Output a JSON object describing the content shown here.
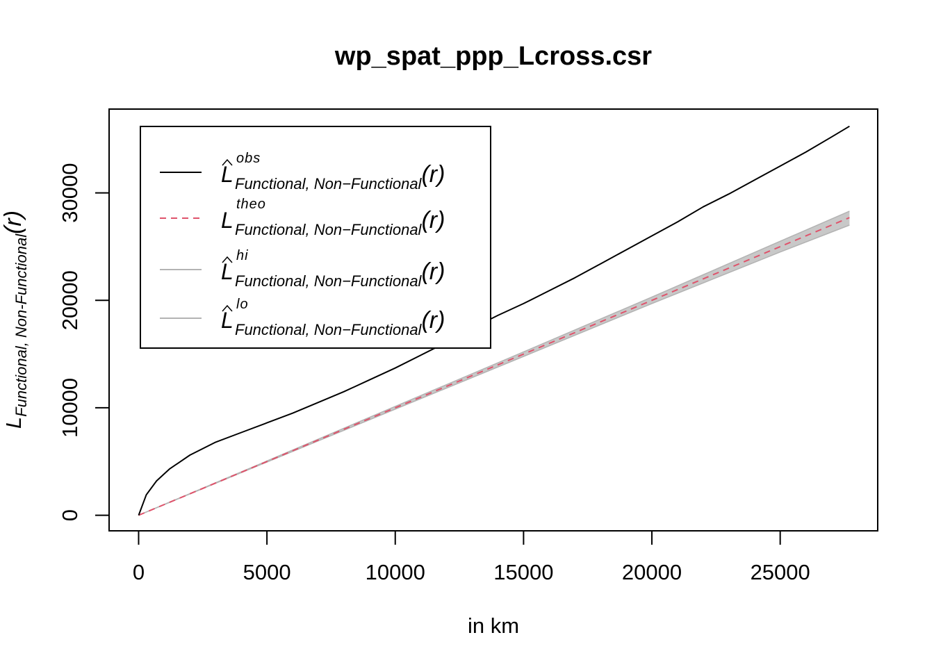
{
  "chart_data": {
    "type": "line",
    "title": "wp_spat_ppp_Lcross.csr",
    "xlabel": "in km",
    "ylabel": {
      "main": "L",
      "subscript": "Functional, Non-Functional",
      "arg": "(r)"
    },
    "xlim": [
      -1150,
      28800
    ],
    "ylim": [
      -1450,
      37800
    ],
    "xticks": [
      0,
      5000,
      10000,
      15000,
      20000,
      25000
    ],
    "xtick_labels": [
      "0",
      "5000",
      "10000",
      "15000",
      "20000",
      "25000"
    ],
    "yticks": [
      0,
      10000,
      20000,
      30000
    ],
    "ytick_labels": [
      "0",
      "10000",
      "20000",
      "30000"
    ],
    "grid": false,
    "legend_position": "top-left",
    "envelope": {
      "x": [
        0,
        5000,
        10000,
        15000,
        20000,
        25000,
        27700
      ],
      "hi": [
        0,
        5050,
        10130,
        15200,
        20300,
        25500,
        28300
      ],
      "lo": [
        0,
        4950,
        9870,
        14780,
        19700,
        24500,
        27000
      ],
      "color": "#c8c8c8"
    },
    "series": [
      {
        "key": "obs",
        "superscript": "obs",
        "hat": true,
        "color": "#000000",
        "dash": "solid",
        "x": [
          0,
          300,
          700,
          1200,
          2000,
          3000,
          4000,
          5000,
          6000,
          7000,
          8000,
          9000,
          10000,
          11000,
          12000,
          13000,
          14000,
          15000,
          16000,
          17000,
          18000,
          19000,
          20000,
          21000,
          22000,
          23000,
          24000,
          25000,
          26000,
          27000,
          27700
        ],
        "values": [
          0,
          1900,
          3200,
          4300,
          5600,
          6800,
          7700,
          8600,
          9500,
          10500,
          11500,
          12600,
          13700,
          14900,
          16100,
          17400,
          18600,
          19700,
          20900,
          22100,
          23400,
          24700,
          26000,
          27300,
          28700,
          29900,
          31200,
          32500,
          33800,
          35200,
          36200
        ]
      },
      {
        "key": "theo",
        "superscript": "theo",
        "hat": false,
        "color": "#df536b",
        "dash": "dashed",
        "x": [
          0,
          27700
        ],
        "values": [
          0,
          27700
        ]
      },
      {
        "key": "hi",
        "superscript": "hi",
        "hat": true,
        "color": "#b3b3b3",
        "dash": "solid"
      },
      {
        "key": "lo",
        "superscript": "lo",
        "hat": true,
        "color": "#b3b3b3",
        "dash": "solid"
      }
    ],
    "legend_subscript": "Functional, Non−Functional",
    "legend_arg": "(r)"
  }
}
